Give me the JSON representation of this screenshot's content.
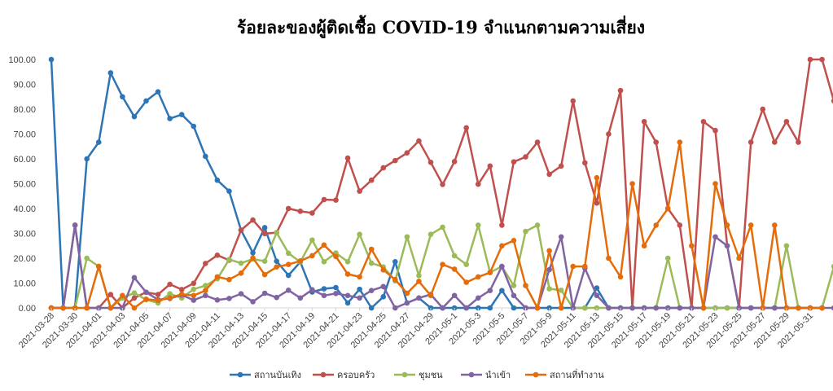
{
  "chart_data": {
    "type": "line",
    "title": "ร้อยละของผู้ติดเชื้อ COVID-19 จำแนกตามความเสี่ยง",
    "xlabel": "",
    "ylabel": "",
    "ylim": [
      0,
      100
    ],
    "yticks": [
      "0.00",
      "10.00",
      "20.00",
      "30.00",
      "40.00",
      "50.00",
      "60.00",
      "70.00",
      "80.00",
      "90.00",
      "100.00"
    ],
    "grid": false,
    "legend": "bottom",
    "x_tick_labels": [
      "2021-03-28",
      "2021-03-30",
      "2021-04-01",
      "2021-04-03",
      "2021-04-05",
      "2021-04-07",
      "2021-04-09",
      "2021-04-11",
      "2021-04-13",
      "2021-04-15",
      "2021-04-17",
      "2021-04-19",
      "2021-04-21",
      "2021-04-23",
      "2021-04-25",
      "2021-04-27",
      "2021-04-29",
      "2021-05-1",
      "2021-05-3",
      "2021-05-5",
      "2021-05-7",
      "2021-05-9",
      "2021-05-11",
      "2021-05-13",
      "2021-05-15",
      "2021-05-17",
      "2021-05-19",
      "2021-05-21",
      "2021-05-23",
      "2021-05-25",
      "2021-05-27",
      "2021-05-29",
      "2021-05-31"
    ],
    "series": [
      {
        "name": "สถานบันเทิง",
        "color": "#2E75B6",
        "values": [
          100,
          0,
          0,
          60,
          66.7,
          94.6,
          85,
          77,
          83.3,
          87,
          76.2,
          77.8,
          73.1,
          61,
          51.4,
          47,
          31.3,
          22.2,
          32.3,
          18.8,
          13.1,
          18.5,
          6.4,
          7.7,
          8.2,
          2,
          7.5,
          0,
          4.5,
          18.6,
          2,
          4,
          0,
          0,
          0,
          0,
          0,
          0,
          7,
          0,
          0,
          0,
          0,
          0,
          0,
          0,
          8,
          0,
          0,
          0,
          0,
          0,
          0,
          0,
          0,
          0,
          0,
          0,
          0,
          0,
          0,
          0,
          0,
          0,
          0
        ]
      },
      {
        "name": "ครอบครัว",
        "color": "#C0504D",
        "values": [
          0,
          0,
          33.3,
          0,
          0,
          5.4,
          0,
          4,
          6.3,
          5.4,
          9.5,
          7.4,
          9.9,
          17.9,
          21.2,
          19.2,
          31.3,
          35.4,
          29.9,
          30.3,
          40,
          38.9,
          38.2,
          43.6,
          43.4,
          60.3,
          47,
          51.4,
          56.4,
          59.3,
          62.4,
          67.2,
          58.6,
          49.7,
          58.9,
          72.5,
          49.8,
          57.1,
          33.3,
          58.8,
          60.8,
          66.7,
          53.8,
          57.1,
          83.3,
          58.4,
          42.2,
          70,
          87.5,
          0,
          75,
          66.7,
          40,
          33.3,
          0,
          75,
          71.4,
          25,
          0,
          66.7,
          80,
          66.7,
          75,
          66.7,
          100,
          100,
          83.3
        ]
      },
      {
        "name": "ชุมชน",
        "color": "#9BBB59",
        "values": [
          0,
          0,
          0,
          20,
          16.7,
          0,
          4,
          6,
          3.3,
          2,
          5.7,
          4,
          7.5,
          9,
          11.7,
          19.5,
          18,
          19.7,
          18.8,
          30.3,
          22,
          18.5,
          27.3,
          18.6,
          22.1,
          18.6,
          29.6,
          18,
          16.5,
          10.9,
          28.6,
          13,
          29.6,
          32.5,
          21,
          17.5,
          33.3,
          14.3,
          16.7,
          9,
          30.8,
          33.3,
          7.7,
          7.1,
          0,
          0,
          0,
          0,
          0,
          0,
          0,
          0,
          20,
          0,
          0,
          0,
          0,
          0,
          0,
          0,
          0,
          0,
          25,
          0,
          0,
          0,
          16.7
        ]
      },
      {
        "name": "นำเข้า",
        "color": "#8064A2",
        "values": [
          0,
          0,
          33.3,
          0,
          0,
          0,
          0,
          12.2,
          6.3,
          3.3,
          3.8,
          5.2,
          3.1,
          5,
          3.2,
          3.8,
          5.7,
          2.5,
          5.9,
          4.2,
          7.1,
          4,
          7.3,
          5,
          5.8,
          5,
          4,
          7,
          8.6,
          0,
          2,
          4,
          5.4,
          0,
          5,
          0,
          4,
          7,
          16.7,
          5,
          0,
          0,
          15.4,
          28.6,
          0,
          16,
          5,
          0,
          0,
          0,
          0,
          0,
          0,
          0,
          0,
          0,
          28.6,
          25,
          0,
          0,
          0,
          0,
          0,
          0,
          0,
          0,
          0
        ]
      },
      {
        "name": "สถานที่ทำงาน",
        "color": "#E46C0A",
        "values": [
          0,
          0,
          0,
          0,
          16.7,
          0,
          5,
          0,
          3.5,
          3,
          4,
          5.5,
          5,
          7,
          12.5,
          11.4,
          14,
          20.1,
          13.4,
          16.5,
          17.5,
          18.9,
          21,
          25.3,
          20.7,
          13.6,
          12.5,
          23.6,
          15.3,
          11.4,
          5.9,
          10.7,
          5,
          17.5,
          15.6,
          10.3,
          12.5,
          14.2,
          25,
          27.1,
          9,
          0,
          23,
          0,
          16.7,
          16.7,
          52.4,
          20,
          12.5,
          50,
          25,
          33.3,
          40,
          66.7,
          25,
          0,
          50,
          33.3,
          20,
          33.3,
          0,
          33.3,
          0,
          0,
          0,
          0
        ]
      }
    ]
  }
}
